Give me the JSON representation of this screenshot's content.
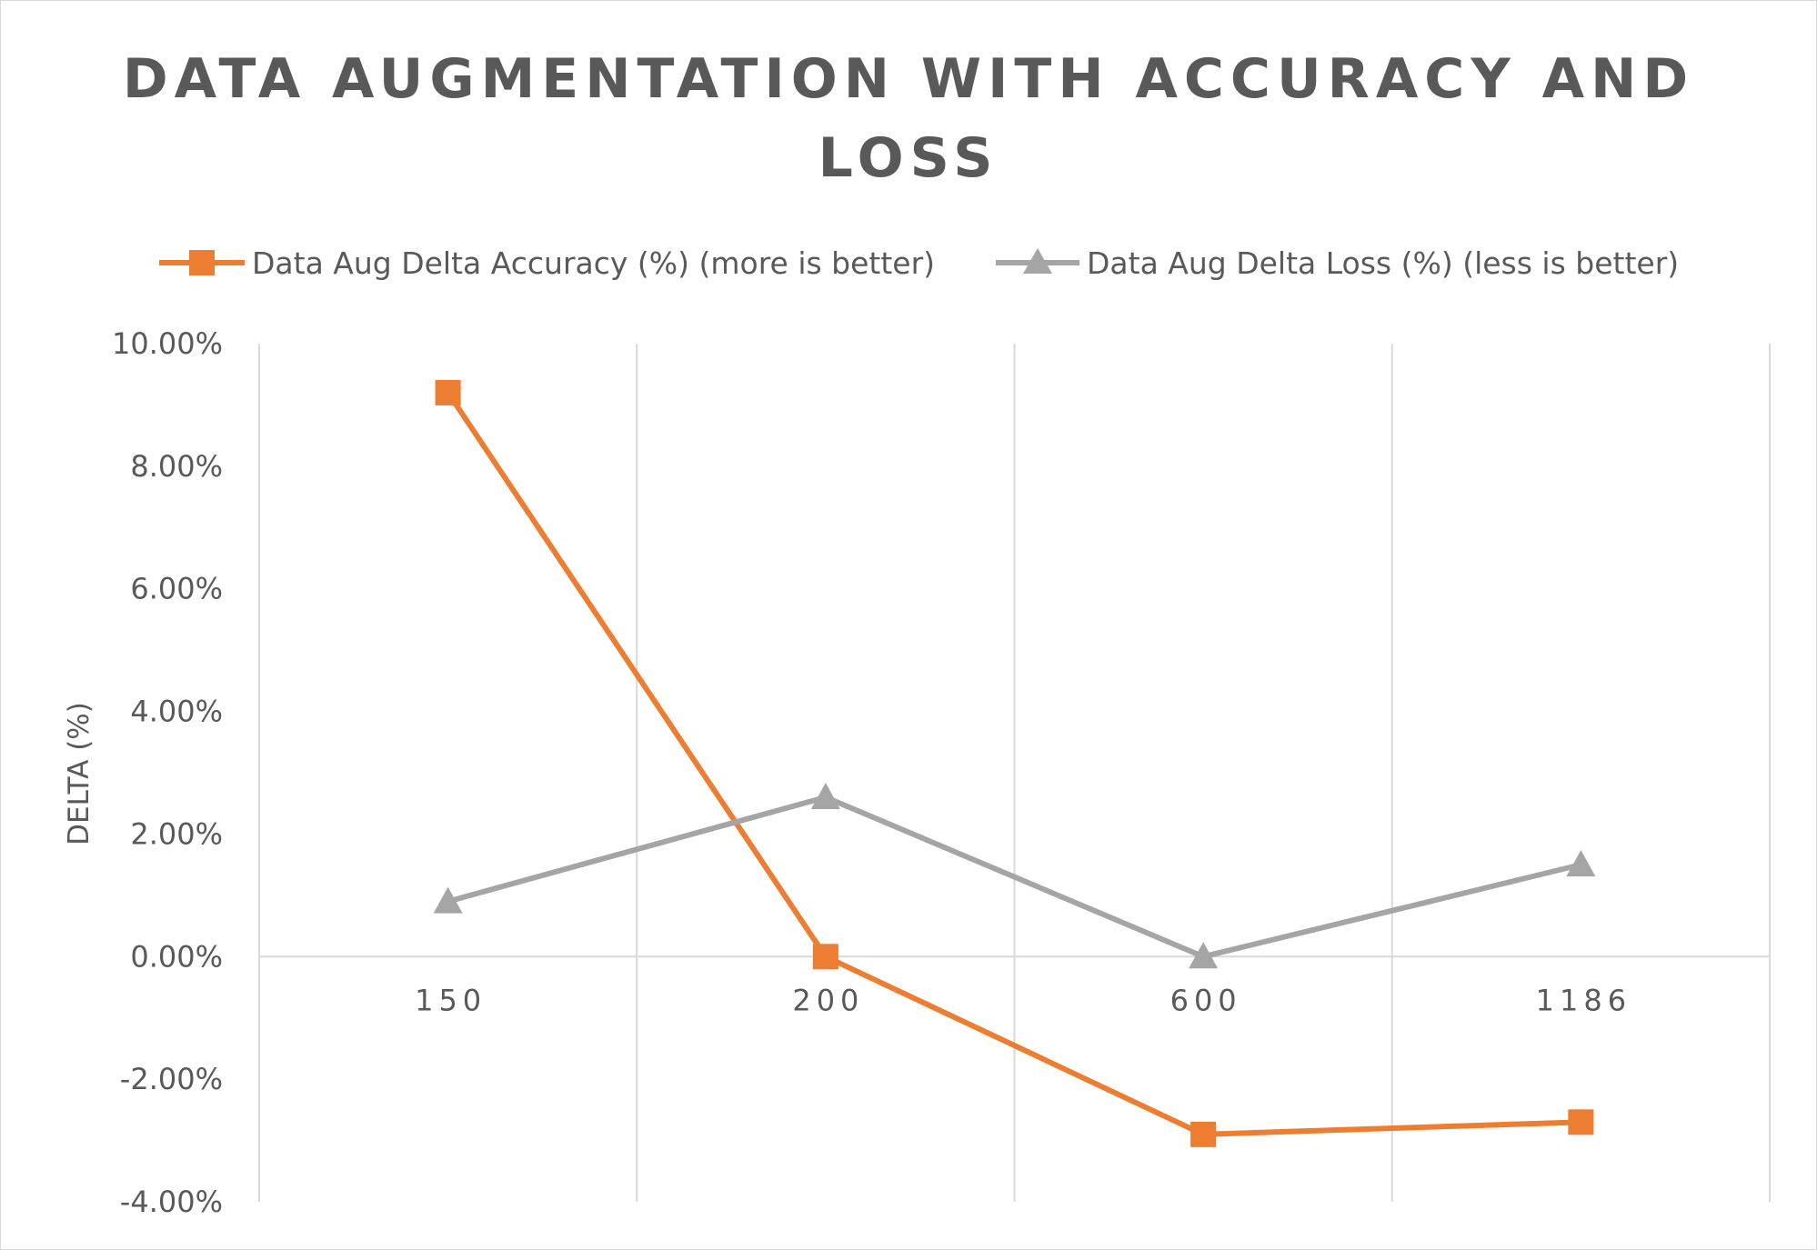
{
  "chart_data": {
    "type": "line",
    "title_lines": [
      "DATA AUGMENTATION WITH ACCURACY AND",
      "LOSS"
    ],
    "categories": [
      "150",
      "200",
      "600",
      "1186"
    ],
    "ylabel": "DELTA (%)",
    "xlabel": "",
    "ylim": [
      -0.04,
      0.1
    ],
    "yticks": [
      0.1,
      0.08,
      0.06,
      0.04,
      0.02,
      0.0,
      -0.02,
      -0.04
    ],
    "ytick_labels": [
      "10.00%",
      "8.00%",
      "6.00%",
      "4.00%",
      "2.00%",
      "0.00%",
      "-2.00%",
      "-4.00%"
    ],
    "grid": "vertical",
    "legend_position": "top",
    "series": [
      {
        "name": "Data Aug Delta Accuracy (%) (more is better)",
        "color": "#ED7D31",
        "marker": "square",
        "values": [
          0.092,
          0.0,
          -0.029,
          -0.027
        ]
      },
      {
        "name": "Data Aug Delta Loss (%) (less is better)",
        "color": "#A5A5A5",
        "marker": "triangle",
        "values": [
          0.009,
          0.026,
          0.0,
          0.015
        ]
      }
    ]
  }
}
